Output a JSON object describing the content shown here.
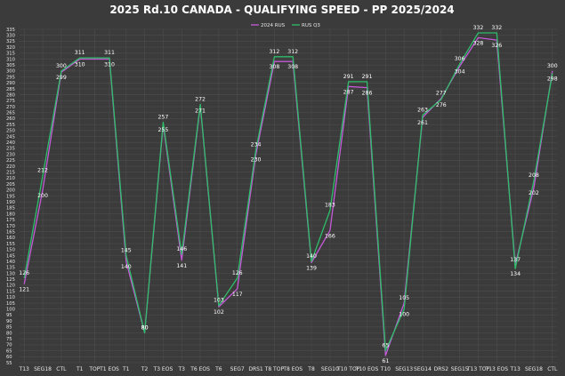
{
  "chart_data": {
    "type": "line",
    "title": "2025 Rd.10 CANADA - QUALIFYING SPEED - PP 2025/2024",
    "xlabel": "",
    "ylabel": "",
    "ylim": [
      55,
      335
    ],
    "ytick_step": 5,
    "grid": true,
    "legend_position": "top-center",
    "categories": [
      "T13",
      "SEG18",
      "CTL",
      "T1",
      "TOP",
      "T1 EOS",
      "T1",
      "T2",
      "T3 EOS",
      "T3",
      "T6 EOS",
      "T6",
      "SEG7",
      "DRS1",
      "T8 TOP",
      "T8 EOS",
      "T8",
      "SEG10",
      "T10 TOP",
      "T10 EOS",
      "T10",
      "SEG13",
      "SEG14",
      "DRS2",
      "SEG15",
      "T13 TOP",
      "T13 EOS",
      "T13",
      "SEG18",
      "CTL"
    ],
    "series": [
      {
        "name": "2024 RUS",
        "color": "#c45ad6",
        "x": [
          0,
          1,
          2,
          3,
          3.8,
          4.6,
          5.5,
          6.5,
          7.5,
          8.5,
          9.5,
          10.5,
          11.5,
          12.5,
          13.5,
          14.5,
          15.5,
          16.5,
          17.5,
          18.5,
          19.5,
          20.5,
          21.5,
          22.5,
          23.5,
          24.5,
          25.5,
          26.5,
          27.5,
          28.5
        ],
        "values": [
          121,
          200,
          299,
          310,
          310,
          310,
          140,
          80,
          255,
          141,
          271,
          102,
          117,
          230,
          308,
          308,
          139,
          166,
          287,
          286,
          61,
          105,
          261,
          277,
          304,
          328,
          326,
          137,
          202,
          300
        ],
        "labels": [
          "121",
          "200",
          "299",
          "310",
          "",
          "310",
          "140",
          "80",
          "255",
          "141",
          "271",
          "102",
          "117",
          "230",
          "308",
          "308",
          "139",
          "166",
          "287",
          "286",
          "61",
          "105",
          "261",
          "277",
          "304",
          "328",
          "326",
          "137",
          "202",
          "300"
        ]
      },
      {
        "name": "RUS Q3",
        "color": "#2ebd6a",
        "x": [
          0,
          1,
          2,
          3,
          3.8,
          4.6,
          5.5,
          6.5,
          7.5,
          8.5,
          9.5,
          10.5,
          11.5,
          12.5,
          13.5,
          14.5,
          15.5,
          16.5,
          17.5,
          18.5,
          19.5,
          20.5,
          21.5,
          22.5,
          23.5,
          24.5,
          25.5,
          26.5,
          27.5,
          28.5
        ],
        "values": [
          126,
          212,
          300,
          311,
          311,
          311,
          145,
          80,
          257,
          146,
          272,
          103,
          126,
          234,
          312,
          312,
          140,
          183,
          291,
          291,
          65,
          100,
          263,
          276,
          306,
          332,
          332,
          134,
          208,
          298
        ],
        "labels": [
          "126",
          "212",
          "300",
          "311",
          "",
          "311",
          "145",
          "80",
          "257",
          "146",
          "272",
          "103",
          "126",
          "234",
          "312",
          "312",
          "140",
          "183",
          "291",
          "291",
          "65",
          "100",
          "263",
          "276",
          "306",
          "332",
          "332",
          "134",
          "208",
          "298"
        ]
      }
    ]
  }
}
